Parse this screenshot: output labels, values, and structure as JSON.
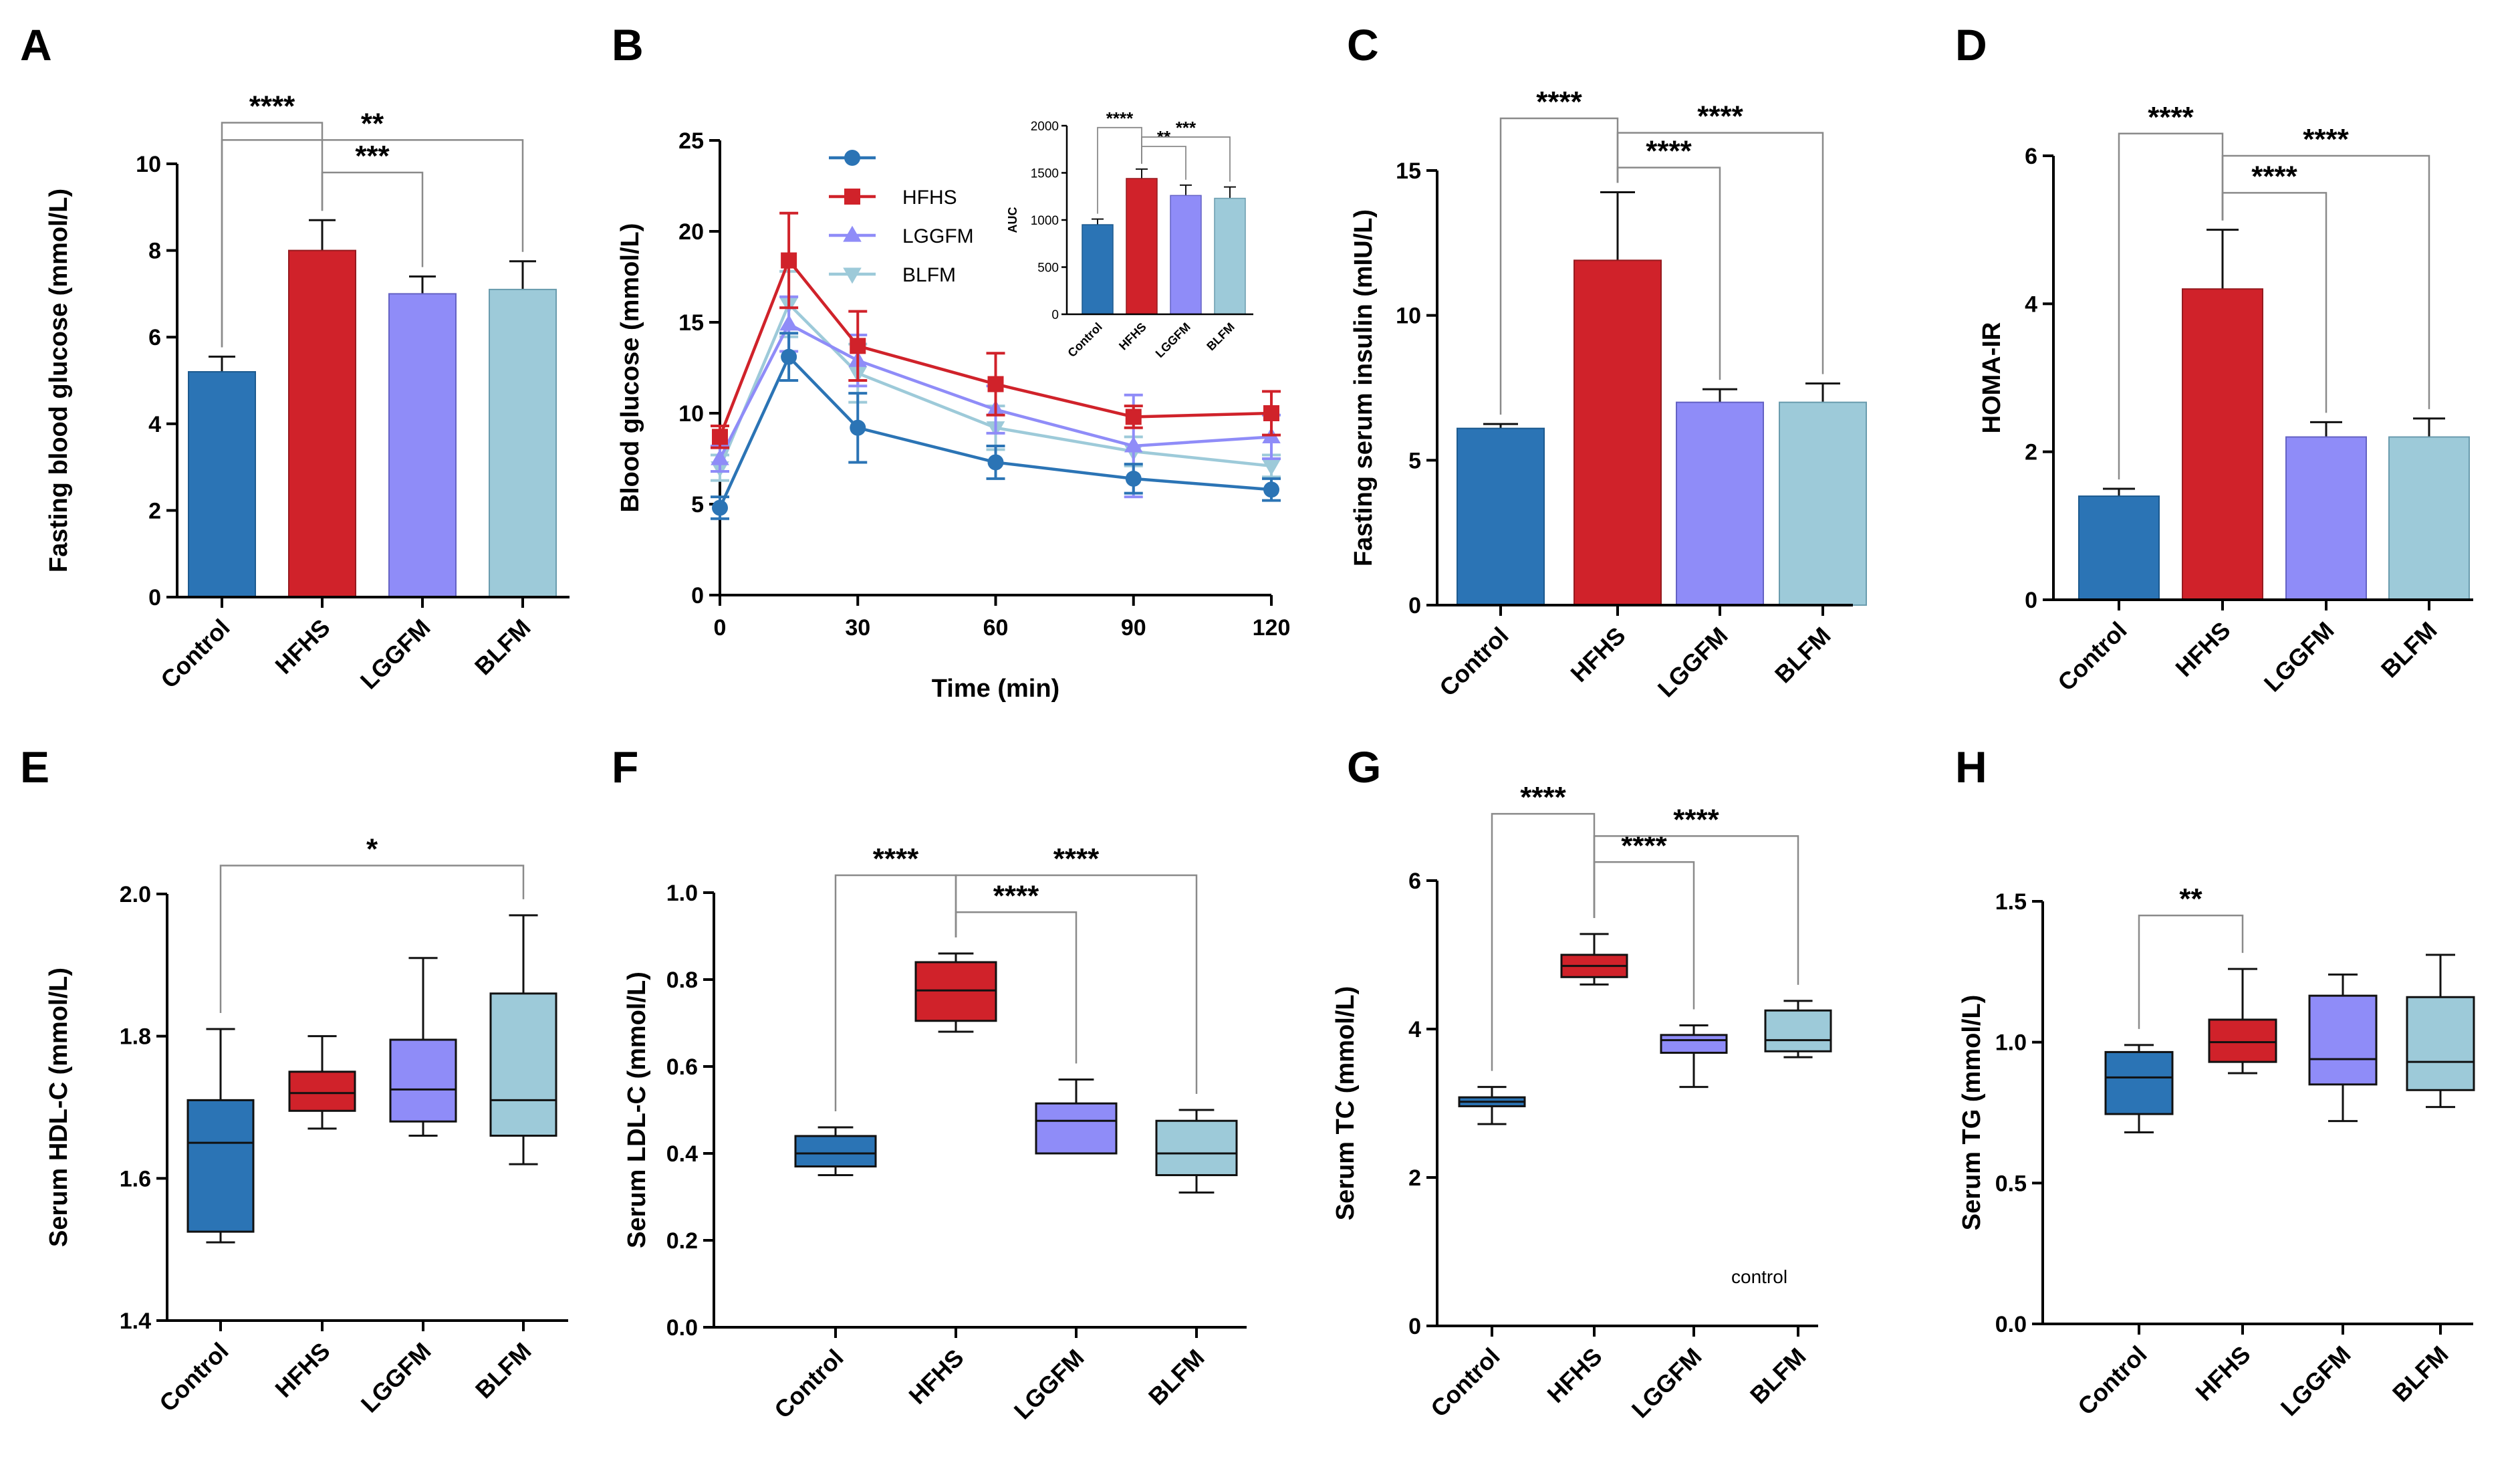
{
  "figure": {
    "colors": {
      "Control": "#2b74b5",
      "HFHS": "#d0222a",
      "LGGFM": "#8f8cf8",
      "BLFM": "#9dcad9"
    },
    "stroke_colors": {
      "Control": "#1c5a8f",
      "HFHS": "#961a1f",
      "LGGFM": "#6462c4",
      "BLFM": "#6a9cae"
    },
    "note": "control"
  },
  "chart_data": [
    {
      "id": "A",
      "letter": "A",
      "type": "bar",
      "categories": [
        "Control",
        "HFHS",
        "LGGFM",
        "BLFM"
      ],
      "values": [
        5.2,
        8.0,
        7.0,
        7.1
      ],
      "errors": [
        0.35,
        0.7,
        0.4,
        0.65
      ],
      "ylabel": "Fasting blood glucose (mmol/L)",
      "ylim": [
        0,
        10
      ],
      "yticks": [
        0,
        2,
        4,
        6,
        8,
        10
      ],
      "significance": [
        {
          "from": 0,
          "to": 1,
          "label": "****",
          "level": 10.95,
          "labelAt": "center"
        },
        {
          "from": 1,
          "to": 2,
          "label": "***",
          "level": 9.8,
          "labelAt": "center"
        },
        {
          "from": 0,
          "to": 3,
          "label": "**",
          "level": 10.55,
          "labelAt": "center"
        }
      ]
    },
    {
      "id": "B",
      "letter": "B",
      "type": "line",
      "x": [
        0,
        15,
        30,
        60,
        90,
        120
      ],
      "xlabel": "Time (min)",
      "ylabel": "Blood glucose (mmol/L)",
      "xlim": [
        0,
        120
      ],
      "xticks": [
        0,
        30,
        60,
        90,
        120
      ],
      "ylim": [
        0,
        25
      ],
      "yticks": [
        0,
        5,
        10,
        15,
        20,
        25
      ],
      "series": [
        {
          "name": "Control",
          "legend": "",
          "marker": "circle",
          "values": [
            4.8,
            13.1,
            9.2,
            7.3,
            6.4,
            5.8
          ],
          "errors": [
            0.6,
            1.3,
            1.9,
            0.9,
            0.8,
            0.6
          ]
        },
        {
          "name": "HFHS",
          "legend": "HFHS",
          "marker": "square",
          "values": [
            8.7,
            18.4,
            13.7,
            11.6,
            9.8,
            10.0
          ],
          "errors": [
            0.6,
            2.6,
            1.9,
            1.7,
            0.6,
            1.2
          ]
        },
        {
          "name": "LGGFM",
          "legend": "LGGFM",
          "marker": "triangle-up",
          "values": [
            7.5,
            14.9,
            12.9,
            10.2,
            8.2,
            8.7
          ],
          "errors": [
            0.7,
            1.5,
            1.4,
            1.3,
            2.8,
            1.2
          ]
        },
        {
          "name": "BLFM",
          "legend": "BLFM",
          "marker": "triangle-down",
          "values": [
            7.0,
            16.0,
            12.2,
            9.2,
            7.9,
            7.1
          ],
          "errors": [
            0.7,
            1.8,
            1.6,
            1.2,
            0.8,
            0.6
          ]
        }
      ],
      "inset": {
        "type": "bar",
        "categories": [
          "Control",
          "HFHS",
          "LGGFM",
          "BLFM"
        ],
        "values": [
          950,
          1440,
          1260,
          1230
        ],
        "errors": [
          60,
          100,
          110,
          120
        ],
        "ylabel": "AUC",
        "ylim": [
          0,
          2000
        ],
        "yticks": [
          0,
          500,
          1000,
          1500,
          2000
        ],
        "significance": [
          {
            "from": 0,
            "to": 1,
            "label": "****",
            "level": 1980,
            "labelAt": "center"
          },
          {
            "from": 1,
            "to": 2,
            "label": "**",
            "level": 1780,
            "labelAt": "center"
          },
          {
            "from": 1,
            "to": 3,
            "label": "***",
            "level": 1880,
            "labelAt": "center"
          }
        ]
      }
    },
    {
      "id": "C",
      "letter": "C",
      "type": "bar",
      "categories": [
        "Control",
        "HFHS",
        "LGGFM",
        "BLFM"
      ],
      "values": [
        6.1,
        11.9,
        7.0,
        7.0
      ],
      "errors": [
        0.15,
        2.35,
        0.45,
        0.65
      ],
      "ylabel": "Fasting serum insulin (mIU/L)",
      "ylim": [
        0,
        15
      ],
      "yticks": [
        0,
        5,
        10,
        15
      ],
      "significance": [
        {
          "from": 0,
          "to": 1,
          "label": "****",
          "level": 16.8,
          "labelAt": "center"
        },
        {
          "from": 1,
          "to": 2,
          "label": "****",
          "level": 15.1,
          "labelAt": "center"
        },
        {
          "from": 1,
          "to": 3,
          "label": "****",
          "level": 16.3,
          "labelAt": "mid"
        }
      ]
    },
    {
      "id": "D",
      "letter": "D",
      "type": "bar",
      "categories": [
        "Control",
        "HFHS",
        "LGGFM",
        "BLFM"
      ],
      "values": [
        1.4,
        4.2,
        2.2,
        2.2
      ],
      "errors": [
        0.1,
        0.8,
        0.2,
        0.25
      ],
      "ylabel": "HOMA-IR",
      "ylim": [
        0,
        6
      ],
      "yticks": [
        0,
        2,
        4,
        6
      ],
      "significance": [
        {
          "from": 0,
          "to": 1,
          "label": "****",
          "level": 6.3,
          "labelAt": "center"
        },
        {
          "from": 1,
          "to": 2,
          "label": "****",
          "level": 5.5,
          "labelAt": "center"
        },
        {
          "from": 1,
          "to": 3,
          "label": "****",
          "level": 6.0,
          "labelAt": "mid"
        }
      ]
    },
    {
      "id": "E",
      "letter": "E",
      "type": "box",
      "categories": [
        "Control",
        "HFHS",
        "LGGFM",
        "BLFM"
      ],
      "boxes": [
        {
          "min": 1.51,
          "q1": 1.525,
          "median": 1.65,
          "q3": 1.71,
          "max": 1.81
        },
        {
          "min": 1.67,
          "q1": 1.695,
          "median": 1.72,
          "q3": 1.75,
          "max": 1.8
        },
        {
          "min": 1.66,
          "q1": 1.68,
          "median": 1.725,
          "q3": 1.795,
          "max": 1.91
        },
        {
          "min": 1.62,
          "q1": 1.66,
          "median": 1.71,
          "q3": 1.86,
          "max": 1.97
        }
      ],
      "ylabel": "Serum HDL-C (mmol/L)",
      "ylim": [
        1.4,
        2.0
      ],
      "yticks": [
        "1.4",
        "1.6",
        "1.8",
        "2.0"
      ],
      "significance": [
        {
          "from": 0,
          "to": 3,
          "label": "*",
          "level": 2.04,
          "labelAt": "center"
        }
      ]
    },
    {
      "id": "F",
      "letter": "F",
      "type": "box",
      "categories": [
        "Control",
        "HFHS",
        "LGGFM",
        "BLFM"
      ],
      "boxes": [
        {
          "min": 0.35,
          "q1": 0.37,
          "median": 0.4,
          "q3": 0.44,
          "max": 0.46
        },
        {
          "min": 0.68,
          "q1": 0.705,
          "median": 0.775,
          "q3": 0.84,
          "max": 0.86
        },
        {
          "min": 0.4,
          "q1": 0.4,
          "median": 0.475,
          "q3": 0.515,
          "max": 0.57
        },
        {
          "min": 0.31,
          "q1": 0.35,
          "median": 0.4,
          "q3": 0.475,
          "max": 0.5
        }
      ],
      "ylabel": "Serum LDL-C (mmol/L)",
      "ylim": [
        0,
        1.0
      ],
      "yticks": [
        "0.0",
        "0.2",
        "0.4",
        "0.6",
        "0.8",
        "1.0"
      ],
      "significance": [
        {
          "from": 0,
          "to": 1,
          "label": "****",
          "level": 1.04,
          "labelAt": "center"
        },
        {
          "from": 1,
          "to": 2,
          "label": "****",
          "level": 0.955,
          "labelAt": "center"
        },
        {
          "from": 1,
          "to": 3,
          "label": "****",
          "level": 1.04,
          "labelAt": "mid"
        }
      ]
    },
    {
      "id": "G",
      "letter": "G",
      "type": "box",
      "categories": [
        "Control",
        "HFHS",
        "LGGFM",
        "BLFM"
      ],
      "boxes": [
        {
          "min": 2.72,
          "q1": 2.96,
          "median": 3.02,
          "q3": 3.08,
          "max": 3.22
        },
        {
          "min": 4.6,
          "q1": 4.7,
          "median": 4.85,
          "q3": 5.0,
          "max": 5.28
        },
        {
          "min": 3.22,
          "q1": 3.68,
          "median": 3.85,
          "q3": 3.92,
          "max": 4.05
        },
        {
          "min": 3.62,
          "q1": 3.7,
          "median": 3.85,
          "q3": 4.25,
          "max": 4.38
        }
      ],
      "ylabel": "Serum TC (mmol/L)",
      "ylim": [
        0,
        6
      ],
      "yticks": [
        "0",
        "2",
        "4",
        "6"
      ],
      "significance": [
        {
          "from": 0,
          "to": 1,
          "label": "****",
          "level": 6.9,
          "labelAt": "center"
        },
        {
          "from": 1,
          "to": 2,
          "label": "****",
          "level": 6.25,
          "labelAt": "center"
        },
        {
          "from": 1,
          "to": 3,
          "label": "****",
          "level": 6.6,
          "labelAt": "mid"
        }
      ]
    },
    {
      "id": "H",
      "letter": "H",
      "type": "box",
      "categories": [
        "Control",
        "HFHS",
        "LGGFM",
        "BLFM"
      ],
      "boxes": [
        {
          "min": 0.68,
          "q1": 0.745,
          "median": 0.875,
          "q3": 0.965,
          "max": 0.99
        },
        {
          "min": 0.89,
          "q1": 0.93,
          "median": 1.0,
          "q3": 1.08,
          "max": 1.26
        },
        {
          "min": 0.72,
          "q1": 0.85,
          "median": 0.94,
          "q3": 1.165,
          "max": 1.24
        },
        {
          "min": 0.77,
          "q1": 0.83,
          "median": 0.93,
          "q3": 1.16,
          "max": 1.31
        }
      ],
      "ylabel": "Serum TG (mmol/L)",
      "ylim": [
        0,
        1.5
      ],
      "yticks": [
        "0.0",
        "0.5",
        "1.0",
        "1.5"
      ],
      "significance": [
        {
          "from": 0,
          "to": 1,
          "label": "**",
          "level": 1.45,
          "labelAt": "center"
        }
      ]
    }
  ]
}
